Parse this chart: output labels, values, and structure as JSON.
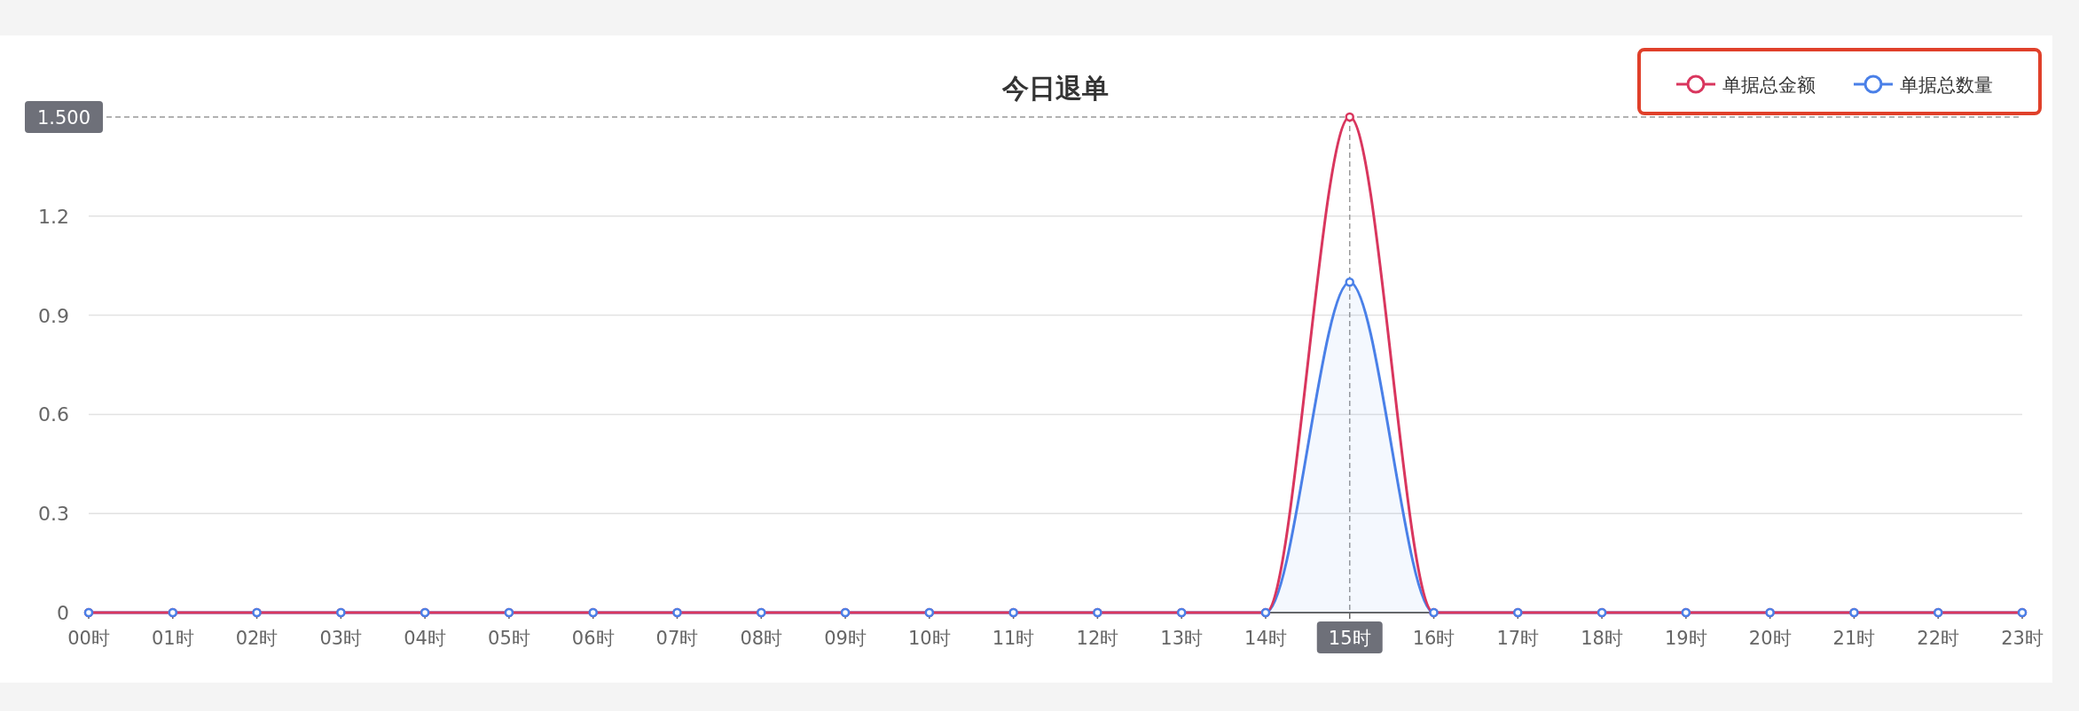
{
  "chart_data": {
    "type": "line",
    "title": "今日退单",
    "categories": [
      "00时",
      "01时",
      "02时",
      "03时",
      "04时",
      "05时",
      "06时",
      "07时",
      "08时",
      "09时",
      "10时",
      "11时",
      "12时",
      "13时",
      "14时",
      "15时",
      "16时",
      "17时",
      "18时",
      "19时",
      "20时",
      "21时",
      "22时",
      "23时"
    ],
    "series": [
      {
        "name": "单据总金额",
        "type": "line",
        "color": "#d9365e",
        "values": [
          0,
          0,
          0,
          0,
          0,
          0,
          0,
          0,
          0,
          0,
          0,
          0,
          0,
          0,
          0,
          1.5,
          0,
          0,
          0,
          0,
          0,
          0,
          0,
          0
        ]
      },
      {
        "name": "单据总数量",
        "type": "area",
        "color": "#4a80e8",
        "values": [
          0,
          0,
          0,
          0,
          0,
          0,
          0,
          0,
          0,
          0,
          0,
          0,
          0,
          0,
          0,
          1,
          0,
          0,
          0,
          0,
          0,
          0,
          0,
          0
        ]
      }
    ],
    "ylim": [
      0,
      1.5
    ],
    "yticks": [
      0,
      0.3,
      0.6,
      0.9,
      1.2
    ],
    "grid": "y",
    "legend": "top right",
    "marker": "circle",
    "ref_lines": [
      {
        "axis": "y",
        "value": 1.5,
        "label": "1.500"
      },
      {
        "axis": "x",
        "value": "15时",
        "label": null
      }
    ]
  }
}
